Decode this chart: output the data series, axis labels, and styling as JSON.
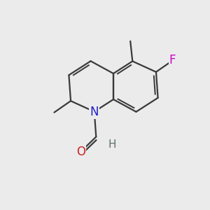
{
  "bg_color": "#ebebeb",
  "bond_color": "#3a3a3a",
  "bond_width": 1.6,
  "atom_colors": {
    "N": "#2020cc",
    "O": "#cc2020",
    "F": "#cc00cc",
    "H": "#607070",
    "C": "#3a3a3a"
  },
  "font_size_atom": 12,
  "font_size_h": 11
}
